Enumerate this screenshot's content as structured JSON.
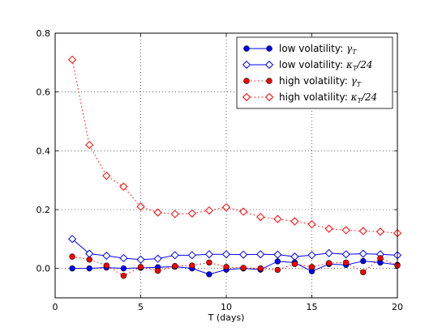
{
  "chart_data": {
    "type": "line",
    "xlabel": "T (days)",
    "ylabel": "",
    "xlim": [
      0,
      20
    ],
    "ylim": [
      -0.1,
      0.8
    ],
    "xticks": [
      0,
      5,
      10,
      15,
      20
    ],
    "yticks": [
      0.0,
      0.2,
      0.4,
      0.6,
      0.8
    ],
    "xtick_labels": [
      "0",
      "5",
      "10",
      "15",
      "20"
    ],
    "ytick_labels": [
      "0.0",
      "0.2",
      "0.4",
      "0.6",
      "0.8"
    ],
    "grid": true,
    "legend_position": "top-right",
    "x": [
      1,
      2,
      3,
      4,
      5,
      6,
      7,
      8,
      9,
      10,
      11,
      12,
      13,
      14,
      15,
      16,
      17,
      18,
      19,
      20
    ],
    "series": [
      {
        "name": "low volatility: γ_T",
        "legend_prefix": "low volatility: ",
        "legend_math": "γ",
        "legend_sub": "T",
        "legend_suffix": "",
        "color": "#0000ff",
        "marker": "circle",
        "line": "solid",
        "filled": true,
        "values": [
          0.0,
          0.0,
          0.003,
          0.0,
          0.002,
          0.004,
          0.006,
          0.0,
          -0.02,
          -0.004,
          0.0,
          -0.004,
          0.024,
          0.02,
          -0.01,
          0.015,
          0.012,
          0.025,
          0.02,
          0.012
        ]
      },
      {
        "name": "low volatility: κ_T/24",
        "legend_prefix": "low volatility: ",
        "legend_math": "κ",
        "legend_sub": "T",
        "legend_suffix": "/24",
        "color": "#0000ff",
        "marker": "diamond",
        "line": "solid",
        "filled": false,
        "values": [
          0.1,
          0.05,
          0.043,
          0.035,
          0.03,
          0.033,
          0.045,
          0.045,
          0.048,
          0.048,
          0.047,
          0.048,
          0.047,
          0.04,
          0.045,
          0.052,
          0.048,
          0.05,
          0.048,
          0.045
        ]
      },
      {
        "name": "high volatility: γ_T",
        "legend_prefix": "high volatility: ",
        "legend_math": "γ",
        "legend_sub": "T",
        "legend_suffix": "",
        "color": "#ff0000",
        "marker": "circle",
        "line": "dotted",
        "filled": true,
        "values": [
          0.04,
          0.03,
          0.01,
          -0.025,
          0.005,
          -0.008,
          0.008,
          0.01,
          0.02,
          0.005,
          0.002,
          0.0,
          -0.005,
          0.015,
          0.005,
          0.018,
          0.02,
          -0.013,
          0.035,
          0.01
        ]
      },
      {
        "name": "high volatility: κ_T/24",
        "legend_prefix": "high volatility: ",
        "legend_math": "κ",
        "legend_sub": "T",
        "legend_suffix": "/24",
        "color": "#ff0000",
        "marker": "diamond",
        "line": "dotted",
        "filled": false,
        "values": [
          0.71,
          0.42,
          0.315,
          0.278,
          0.21,
          0.19,
          0.185,
          0.187,
          0.197,
          0.208,
          0.193,
          0.175,
          0.168,
          0.16,
          0.15,
          0.135,
          0.13,
          0.127,
          0.125,
          0.12
        ]
      }
    ]
  }
}
